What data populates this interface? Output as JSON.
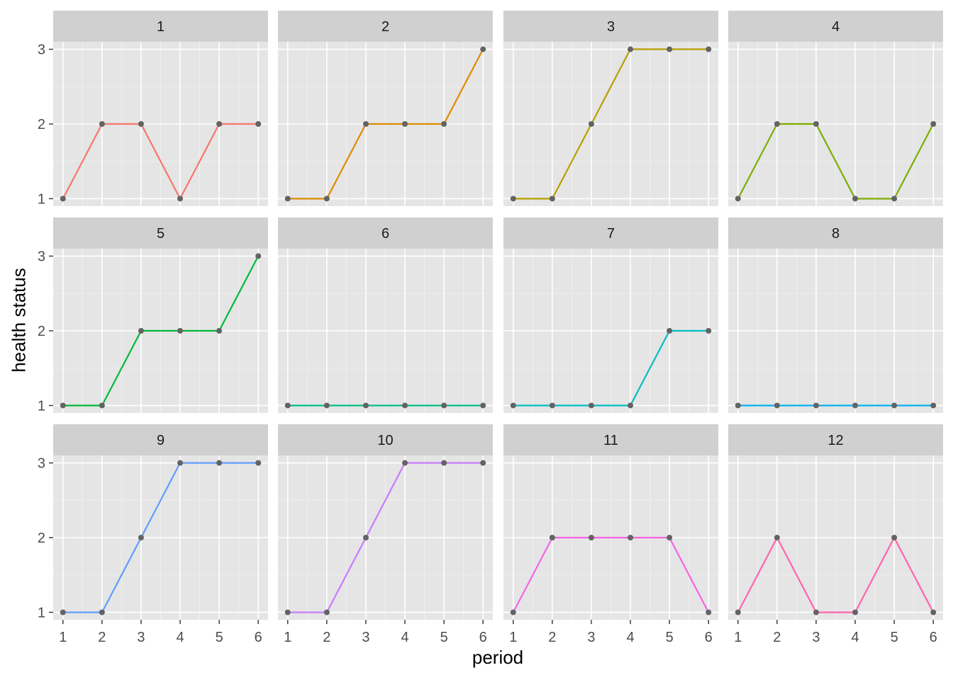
{
  "chart_data": {
    "type": "line",
    "layout": "facet-grid",
    "xlabel": "period",
    "ylabel": "health status",
    "x": [
      1,
      2,
      3,
      4,
      5,
      6
    ],
    "xticks": [
      1,
      2,
      3,
      4,
      5,
      6
    ],
    "yticks": [
      1,
      2,
      3
    ],
    "ylim": [
      0.9,
      3.1
    ],
    "xlim": [
      0.75,
      6.25
    ],
    "grid": true,
    "panel_background": "#e5e5e5",
    "strip_background": "#d0d0d0",
    "point_color": "#636363",
    "series": [
      {
        "name": "1",
        "color": "#F8766D",
        "values": [
          1,
          2,
          2,
          1,
          2,
          2
        ]
      },
      {
        "name": "2",
        "color": "#DE8C00",
        "values": [
          1,
          1,
          2,
          2,
          2,
          3
        ]
      },
      {
        "name": "3",
        "color": "#B79F00",
        "values": [
          1,
          1,
          2,
          3,
          3,
          3
        ]
      },
      {
        "name": "4",
        "color": "#7CAE00",
        "values": [
          1,
          2,
          2,
          1,
          1,
          2
        ]
      },
      {
        "name": "5",
        "color": "#00BA38",
        "values": [
          1,
          1,
          2,
          2,
          2,
          3
        ]
      },
      {
        "name": "6",
        "color": "#00C08B",
        "values": [
          1,
          1,
          1,
          1,
          1,
          1
        ]
      },
      {
        "name": "7",
        "color": "#00BFC4",
        "values": [
          1,
          1,
          1,
          1,
          2,
          2
        ]
      },
      {
        "name": "8",
        "color": "#00B4F0",
        "values": [
          1,
          1,
          1,
          1,
          1,
          1
        ]
      },
      {
        "name": "9",
        "color": "#619CFF",
        "values": [
          1,
          1,
          2,
          3,
          3,
          3
        ]
      },
      {
        "name": "10",
        "color": "#C77CFF",
        "values": [
          1,
          1,
          2,
          3,
          3,
          3
        ]
      },
      {
        "name": "11",
        "color": "#F564E3",
        "values": [
          1,
          2,
          2,
          2,
          2,
          1
        ]
      },
      {
        "name": "12",
        "color": "#FF64B0",
        "values": [
          1,
          2,
          1,
          1,
          2,
          1
        ]
      }
    ]
  }
}
